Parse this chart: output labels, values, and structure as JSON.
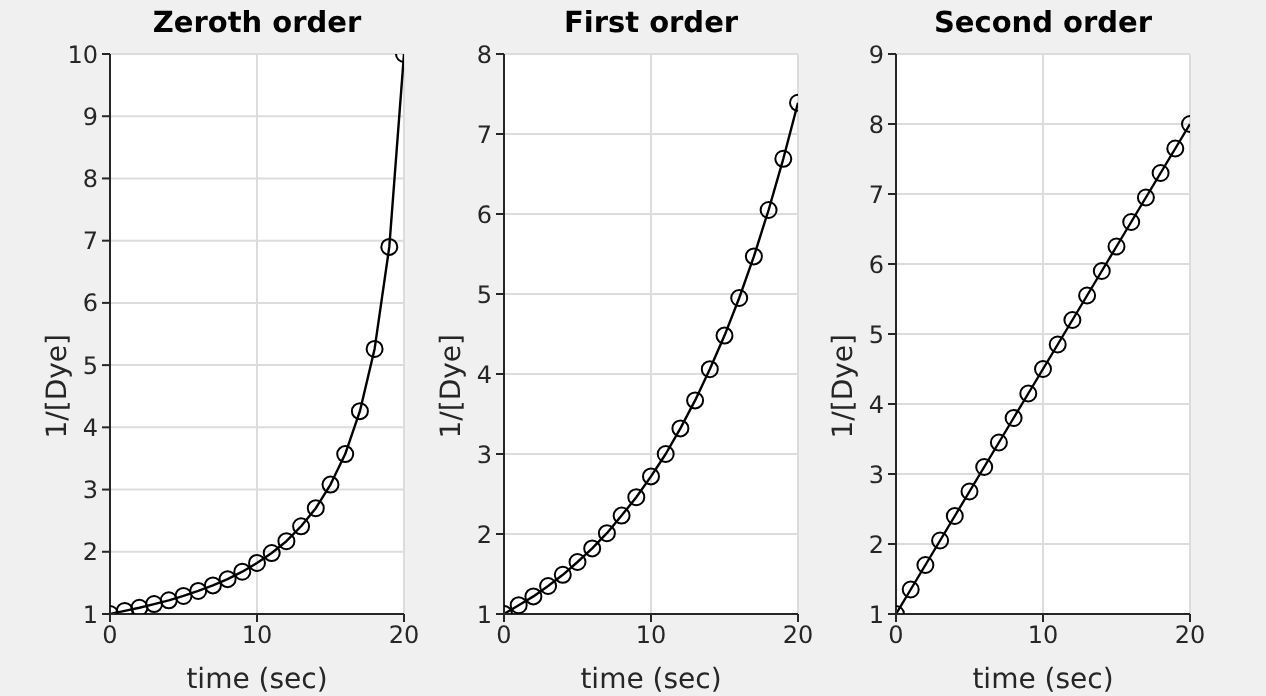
{
  "chart_data": [
    {
      "type": "line",
      "title": "Zeroth order",
      "xlabel": "time (sec)",
      "ylabel": "1/[Dye]",
      "x": [
        0,
        1,
        2,
        3,
        4,
        5,
        6,
        7,
        8,
        9,
        10,
        11,
        12,
        13,
        14,
        15,
        16,
        17,
        18,
        19,
        20
      ],
      "series": [
        {
          "color": "#000000",
          "values": [
            1,
            1.05,
            1.1,
            1.16,
            1.22,
            1.29,
            1.37,
            1.46,
            1.56,
            1.68,
            1.82,
            1.98,
            2.17,
            2.41,
            2.7,
            3.08,
            3.57,
            4.26,
            5.26,
            6.9,
            10
          ]
        }
      ],
      "xlim": [
        0,
        20
      ],
      "ylim": [
        1,
        10
      ],
      "xticks": [
        0,
        10,
        20
      ],
      "yticks": [
        1,
        2,
        3,
        4,
        5,
        6,
        7,
        8,
        9,
        10
      ],
      "grid": true,
      "marker": "circle"
    },
    {
      "type": "line",
      "title": "First order",
      "xlabel": "time (sec)",
      "ylabel": "1/[Dye]",
      "x": [
        0,
        1,
        2,
        3,
        4,
        5,
        6,
        7,
        8,
        9,
        10,
        11,
        12,
        13,
        14,
        15,
        16,
        17,
        18,
        19,
        20
      ],
      "series": [
        {
          "color": "#000000",
          "values": [
            1,
            1.11,
            1.22,
            1.35,
            1.49,
            1.65,
            1.82,
            2.01,
            2.23,
            2.46,
            2.72,
            3,
            3.32,
            3.67,
            4.06,
            4.48,
            4.95,
            5.47,
            6.05,
            6.69,
            7.39
          ]
        }
      ],
      "xlim": [
        0,
        20
      ],
      "ylim": [
        1,
        8
      ],
      "xticks": [
        0,
        10,
        20
      ],
      "yticks": [
        1,
        2,
        3,
        4,
        5,
        6,
        7,
        8
      ],
      "grid": true,
      "marker": "circle"
    },
    {
      "type": "line",
      "title": "Second order",
      "xlabel": "time (sec)",
      "ylabel": "1/[Dye]",
      "x": [
        0,
        1,
        2,
        3,
        4,
        5,
        6,
        7,
        8,
        9,
        10,
        11,
        12,
        13,
        14,
        15,
        16,
        17,
        18,
        19,
        20
      ],
      "series": [
        {
          "color": "#000000",
          "values": [
            1,
            1.35,
            1.7,
            2.05,
            2.4,
            2.75,
            3.1,
            3.45,
            3.8,
            4.15,
            4.5,
            4.85,
            5.2,
            5.55,
            5.9,
            6.25,
            6.6,
            6.95,
            7.3,
            7.65,
            8
          ]
        }
      ],
      "xlim": [
        0,
        20
      ],
      "ylim": [
        1,
        9
      ],
      "xticks": [
        0,
        10,
        20
      ],
      "yticks": [
        1,
        2,
        3,
        4,
        5,
        6,
        7,
        8,
        9
      ],
      "grid": true,
      "marker": "circle"
    }
  ]
}
